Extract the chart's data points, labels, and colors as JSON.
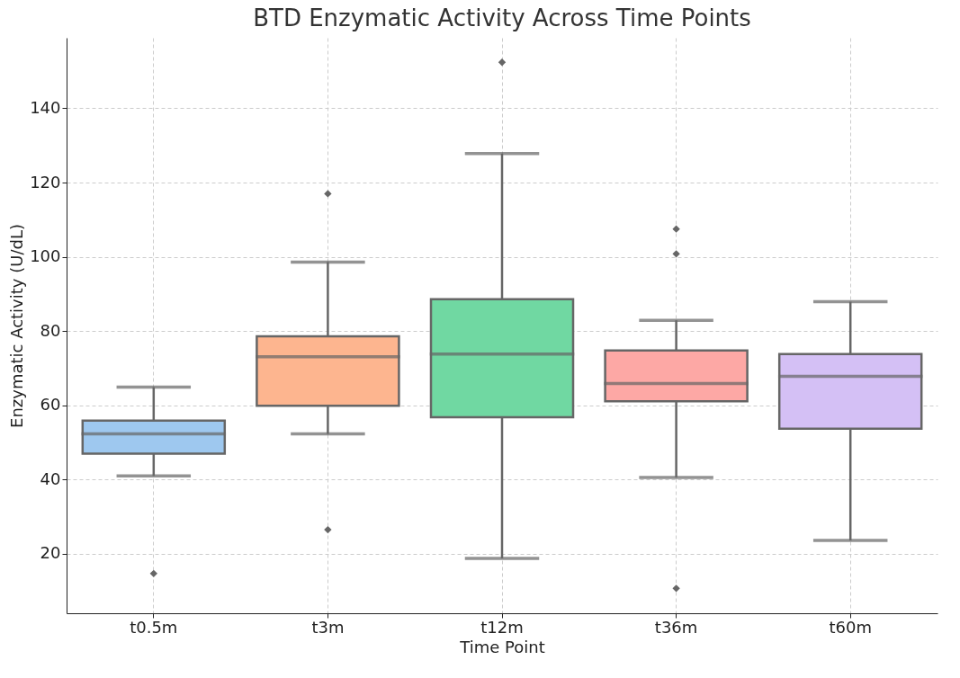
{
  "chart_data": {
    "type": "box",
    "title": "BTD Enzymatic Activity Across Time Points",
    "xlabel": "Time Point",
    "ylabel": "Enzymatic Activity (U/dL)",
    "categories": [
      "t0.5m",
      "t3m",
      "t12m",
      "t36m",
      "t60m"
    ],
    "colors": [
      "#9ec8ef",
      "#fdb58f",
      "#70d8a2",
      "#fda8a5",
      "#d4c0f5"
    ],
    "boxes": [
      {
        "low": 41,
        "q1": 47,
        "median": 52.3,
        "q3": 55.9,
        "high": 64.9,
        "outliers": [
          14.7
        ]
      },
      {
        "low": 52.3,
        "q1": 59.9,
        "median": 73.1,
        "q3": 78.6,
        "high": 98.6,
        "outliers": [
          117,
          26.5
        ]
      },
      {
        "low": 18.8,
        "q1": 56.8,
        "median": 73.8,
        "q3": 88.6,
        "high": 127.8,
        "outliers": [
          152.4
        ]
      },
      {
        "low": 40.6,
        "q1": 61.1,
        "median": 65.9,
        "q3": 74.8,
        "high": 82.9,
        "outliers": [
          107.5,
          100.8,
          10.7
        ]
      },
      {
        "low": 23.6,
        "q1": 53.7,
        "median": 67.8,
        "q3": 73.8,
        "high": 87.9
      }
    ],
    "ylim": [
      4,
      159
    ],
    "yticks": [
      20,
      40,
      60,
      80,
      100,
      120,
      140
    ],
    "grid": true
  }
}
